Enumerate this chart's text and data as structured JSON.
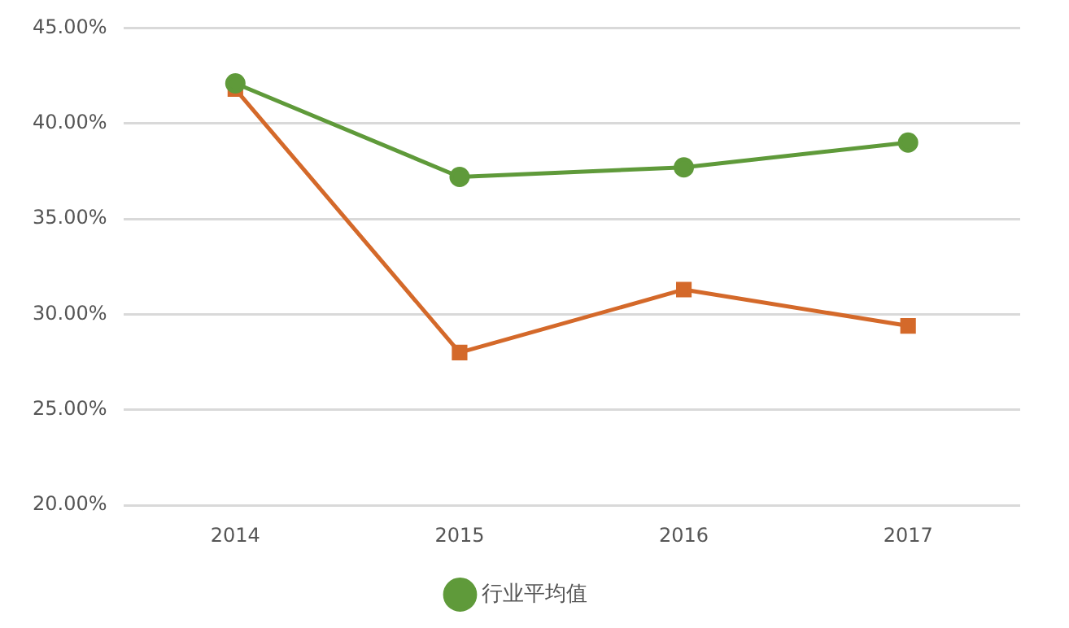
{
  "chart_data": {
    "type": "line",
    "categories": [
      "2014",
      "2015",
      "2016",
      "2017"
    ],
    "series": [
      {
        "color": "#d4692a",
        "marker": "square",
        "values": [
          41.8,
          28.0,
          31.3,
          29.4
        ]
      },
      {
        "name": "行业平均值",
        "color": "#5f9a3a",
        "marker": "circle",
        "values": [
          42.1,
          37.2,
          37.7,
          39.0
        ]
      }
    ],
    "ylim": [
      20,
      45
    ],
    "yticks": [
      {
        "value": 20,
        "label": "20.00%"
      },
      {
        "value": 25,
        "label": "25.00%"
      },
      {
        "value": 30,
        "label": "30.00%"
      },
      {
        "value": 35,
        "label": "35.00%"
      },
      {
        "value": 40,
        "label": "40.00%"
      },
      {
        "value": 45,
        "label": "45.00%"
      }
    ],
    "grid": "y",
    "legend": "bottom",
    "line_style": "solid"
  }
}
